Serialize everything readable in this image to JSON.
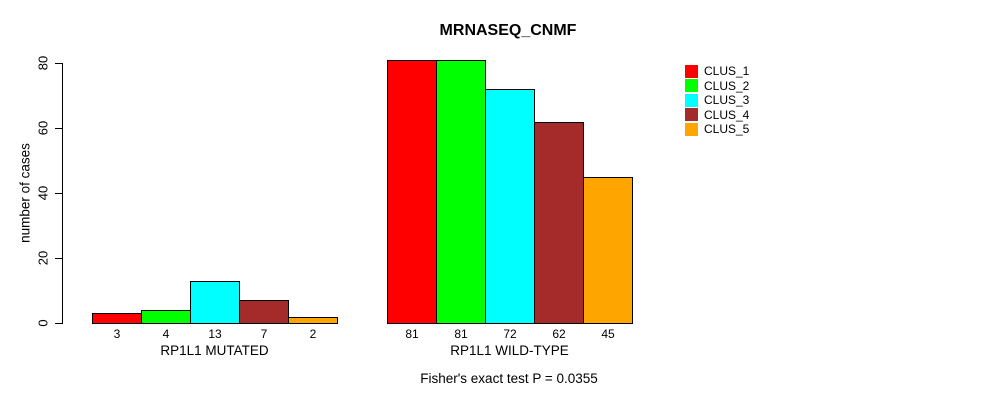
{
  "title": "MRNASEQ_CNMF",
  "subtitle": "Fisher's exact test P = 0.0355",
  "chart_data": {
    "type": "bar",
    "grouped": true,
    "title": "MRNASEQ_CNMF",
    "annotation": "Fisher's exact test P = 0.0355",
    "xlabel": "",
    "ylabel": "number of cases",
    "ylim": [
      0,
      80
    ],
    "yticks": [
      0,
      20,
      40,
      60,
      80
    ],
    "grid": false,
    "legend_position": "top-right",
    "categories": [
      "RP1L1 MUTATED",
      "RP1L1 WILD-TYPE"
    ],
    "series": [
      {
        "name": "CLUS_1",
        "color": "#FF0000",
        "values": [
          3,
          81
        ]
      },
      {
        "name": "CLUS_2",
        "color": "#00FF00",
        "values": [
          4,
          81
        ]
      },
      {
        "name": "CLUS_3",
        "color": "#00FFFF",
        "values": [
          13,
          72
        ]
      },
      {
        "name": "CLUS_4",
        "color": "#A52A2A",
        "values": [
          7,
          62
        ]
      },
      {
        "name": "CLUS_5",
        "color": "#FFA500",
        "values": [
          2,
          45
        ]
      }
    ],
    "bar_value_labels_shown": true
  }
}
